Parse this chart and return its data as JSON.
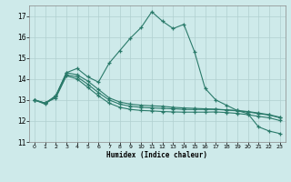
{
  "xlabel": "Humidex (Indice chaleur)",
  "bg_color": "#ceeaea",
  "grid_color": "#b0d0d0",
  "line_color": "#2a7a6a",
  "xlim": [
    -0.5,
    23.5
  ],
  "ylim": [
    11,
    17.5
  ],
  "yticks": [
    11,
    12,
    13,
    14,
    15,
    16,
    17
  ],
  "xticks": [
    0,
    1,
    2,
    3,
    4,
    5,
    6,
    7,
    8,
    9,
    10,
    11,
    12,
    13,
    14,
    15,
    16,
    17,
    18,
    19,
    20,
    21,
    22,
    23
  ],
  "curves": [
    {
      "x": [
        0,
        1,
        2,
        3,
        4,
        5,
        6,
        7,
        8,
        9,
        10,
        11,
        12,
        13,
        14,
        15,
        16,
        17,
        18,
        19,
        20,
        21,
        22,
        23
      ],
      "y": [
        13.0,
        12.8,
        13.2,
        14.3,
        14.5,
        14.1,
        13.85,
        14.75,
        15.35,
        15.95,
        16.45,
        17.2,
        16.75,
        16.4,
        16.6,
        15.3,
        13.55,
        13.0,
        12.75,
        12.5,
        12.35,
        11.72,
        11.52,
        11.4
      ]
    },
    {
      "x": [
        0,
        1,
        2,
        3,
        4,
        5,
        6,
        7,
        8,
        9,
        10,
        11,
        12,
        13,
        14,
        15,
        16,
        17,
        18,
        19,
        20,
        21,
        22,
        23
      ],
      "y": [
        13.0,
        12.85,
        13.2,
        14.3,
        14.2,
        13.9,
        13.5,
        13.1,
        12.9,
        12.8,
        12.75,
        12.72,
        12.7,
        12.65,
        12.62,
        12.6,
        12.58,
        12.56,
        12.53,
        12.5,
        12.45,
        12.38,
        12.3,
        12.18
      ]
    },
    {
      "x": [
        0,
        1,
        2,
        3,
        4,
        5,
        6,
        7,
        8,
        9,
        10,
        11,
        12,
        13,
        14,
        15,
        16,
        17,
        18,
        19,
        20,
        21,
        22,
        23
      ],
      "y": [
        13.0,
        12.85,
        13.15,
        14.2,
        14.1,
        13.75,
        13.35,
        13.0,
        12.8,
        12.7,
        12.65,
        12.62,
        12.6,
        12.58,
        12.55,
        12.55,
        12.55,
        12.55,
        12.52,
        12.48,
        12.43,
        12.35,
        12.28,
        12.15
      ]
    },
    {
      "x": [
        0,
        1,
        2,
        3,
        4,
        5,
        6,
        7,
        8,
        9,
        10,
        11,
        12,
        13,
        14,
        15,
        16,
        17,
        18,
        19,
        20,
        21,
        22,
        23
      ],
      "y": [
        13.0,
        12.85,
        13.1,
        14.15,
        14.0,
        13.6,
        13.2,
        12.85,
        12.65,
        12.55,
        12.5,
        12.48,
        12.45,
        12.43,
        12.42,
        12.42,
        12.42,
        12.43,
        12.4,
        12.36,
        12.3,
        12.22,
        12.15,
        12.02
      ]
    }
  ]
}
